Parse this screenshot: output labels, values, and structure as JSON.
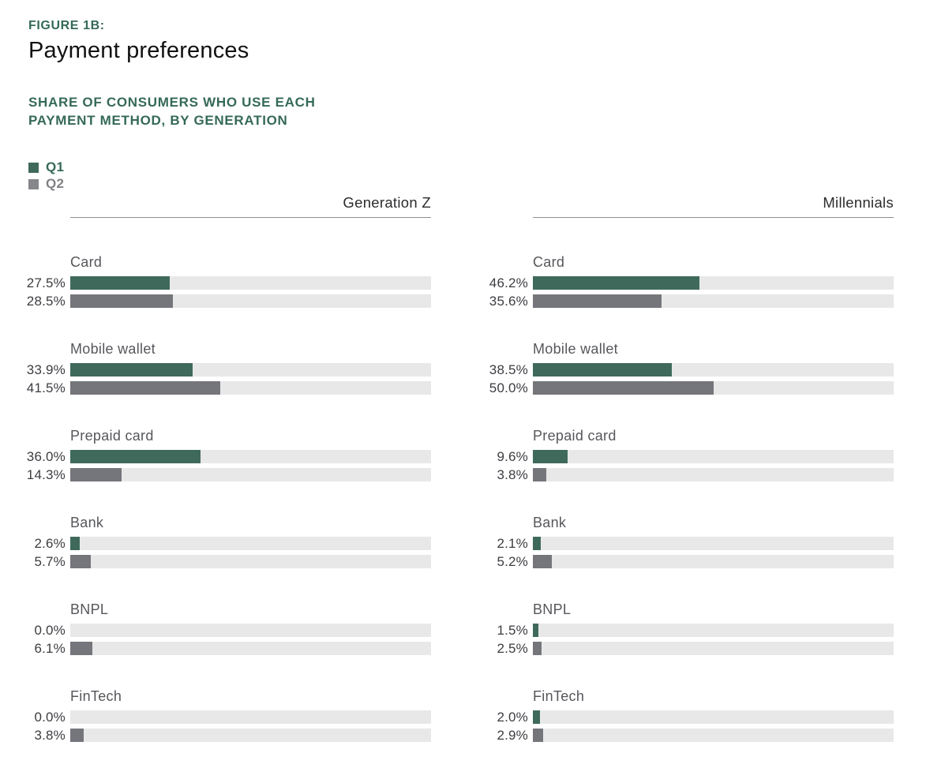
{
  "figure": {
    "eyebrow": "FIGURE 1B:",
    "title": "Payment preferences",
    "subtitle_line1": "SHARE OF CONSUMERS WHO USE EACH",
    "subtitle_line2": "PAYMENT METHOD, BY GENERATION"
  },
  "colors": {
    "q1_green": "#3F6A5B",
    "q2_gray": "#75767B",
    "track_gray": "#E8E8E8",
    "heading_green": "#356958",
    "category_label_gray": "#56575B",
    "value_label_dark": "#3C3D41"
  },
  "legend": [
    {
      "label": "Q1",
      "swatch": "#3F6A5B",
      "text_color": "#356958"
    },
    {
      "label": "Q2",
      "swatch": "#85878A",
      "text_color": "#808184"
    }
  ],
  "chart_data": {
    "type": "bar",
    "orientation": "horizontal",
    "unit": "percent",
    "value_range": [
      0,
      100
    ],
    "grid": false,
    "legend_position": "top-left",
    "categories": [
      "Card",
      "Mobile wallet",
      "Prepaid card",
      "Bank",
      "BNPL",
      "FinTech"
    ],
    "panels": [
      {
        "title": "Generation Z",
        "series": [
          {
            "name": "Q1",
            "color": "#3F6A5B",
            "values": [
              27.5,
              33.9,
              36.0,
              2.6,
              0.0,
              0.0
            ]
          },
          {
            "name": "Q2",
            "color": "#75767B",
            "values": [
              28.5,
              41.5,
              14.3,
              5.7,
              6.1,
              3.8
            ]
          }
        ]
      },
      {
        "title": "Millennials",
        "series": [
          {
            "name": "Q1",
            "color": "#3F6A5B",
            "values": [
              46.2,
              38.5,
              9.6,
              2.1,
              1.5,
              2.0
            ]
          },
          {
            "name": "Q2",
            "color": "#75767B",
            "values": [
              35.6,
              50.0,
              3.8,
              5.2,
              2.5,
              2.9
            ]
          }
        ]
      }
    ]
  }
}
